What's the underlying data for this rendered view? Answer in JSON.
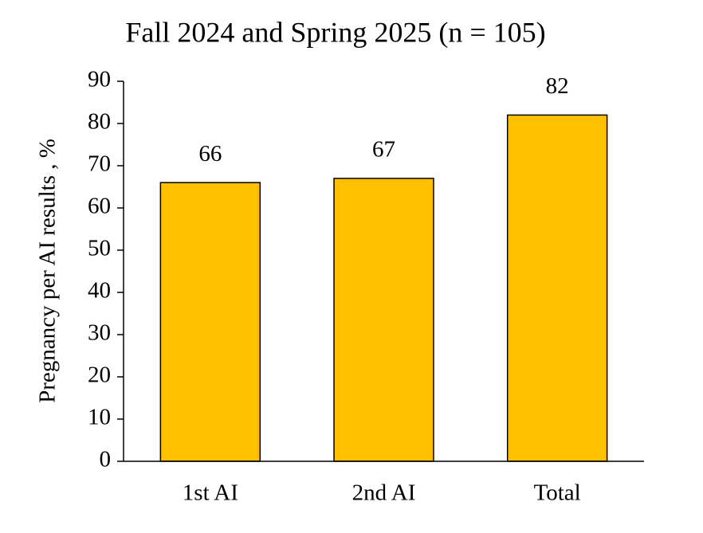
{
  "chart_data": {
    "type": "bar",
    "title": "Fall 2024 and Spring 2025 (n = 105)",
    "y_label": "Pregnancy per AI results , %",
    "categories": [
      "1st AI",
      "2nd AI",
      "Total"
    ],
    "values": [
      66,
      67,
      82
    ],
    "color": "#ffc000",
    "ylim": [
      0,
      90
    ],
    "yticks": [
      0,
      10,
      20,
      30,
      40,
      50,
      60,
      70,
      80,
      90
    ],
    "grid": false
  }
}
